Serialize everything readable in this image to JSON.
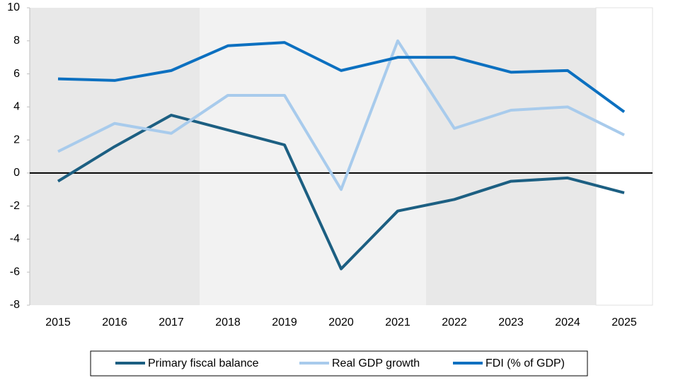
{
  "chart_data": {
    "type": "line",
    "categories": [
      "2015",
      "2016",
      "2017",
      "2018",
      "2019",
      "2020",
      "2021",
      "2022",
      "2023",
      "2024",
      "2025"
    ],
    "series": [
      {
        "name": "Primary fiscal balance",
        "color": "#1c5f82",
        "values": [
          -0.5,
          1.6,
          3.5,
          2.6,
          1.7,
          -5.8,
          -2.3,
          -1.6,
          -0.5,
          -0.3,
          -1.2
        ]
      },
      {
        "name": "Real GDP growth",
        "color": "#a8cbec",
        "values": [
          1.3,
          3.0,
          2.4,
          4.7,
          4.7,
          -1.0,
          8.0,
          2.7,
          3.8,
          4.0,
          2.3
        ]
      },
      {
        "name": "FDI (% of GDP)",
        "color": "#0c70c0",
        "values": [
          5.7,
          5.6,
          6.2,
          7.7,
          7.9,
          6.2,
          7.0,
          7.0,
          6.1,
          6.2,
          3.7
        ]
      }
    ],
    "ylim": [
      -8,
      10
    ],
    "yticks": [
      -8,
      -6,
      -4,
      -2,
      0,
      2,
      4,
      6,
      8,
      10
    ]
  }
}
